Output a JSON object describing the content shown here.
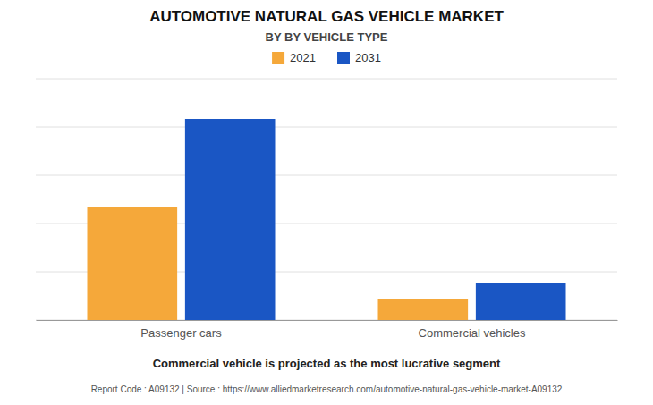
{
  "chart_data": {
    "type": "bar",
    "title": "AUTOMOTIVE NATURAL GAS VEHICLE MARKET",
    "subtitle": "BY BY VEHICLE TYPE",
    "categories": [
      "Passenger cars",
      "Commercial vehicles"
    ],
    "series": [
      {
        "name": "2021",
        "color": "#F5A83A",
        "values": [
          42,
          8
        ]
      },
      {
        "name": "2031",
        "color": "#1A56C4",
        "values": [
          75,
          14
        ]
      }
    ],
    "ylim": [
      0,
      90
    ],
    "yticks": [
      0,
      18,
      36,
      54,
      72,
      90
    ],
    "grid": true,
    "legend": "top",
    "tick_labels": "x",
    "annotations": [
      "Commercial vehicle is projected as the most lucrative segment",
      "Report Code : A09132  |  Source : https://www.alliedmarketresearch.com/automotive-natural-gas-vehicle-market-A09132"
    ]
  }
}
